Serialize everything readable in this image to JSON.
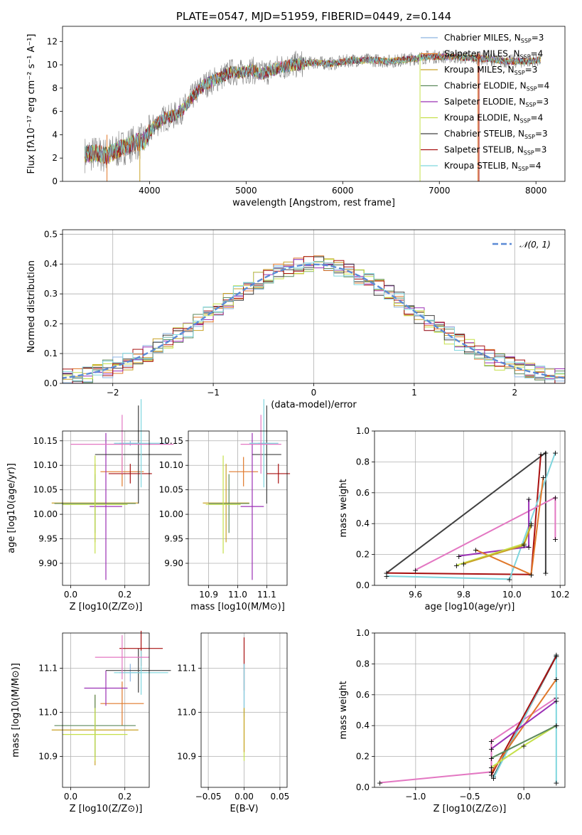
{
  "chart_data": [
    {
      "id": "spectrum",
      "type": "line",
      "title": "PLATE=0547, MJD=51959, FIBERID=0449, z=0.144",
      "xlabel": "wavelength [Angstrom, rest frame]",
      "ylabel": "Flux [fλ10⁻¹⁷ erg cm⁻² s⁻¹ A⁻¹]",
      "xlim": [
        3100,
        8300
      ],
      "ylim": [
        0,
        13.3
      ],
      "xticks": [
        4000,
        5000,
        6000,
        7000,
        8000
      ],
      "yticks": [
        0,
        2,
        4,
        6,
        8,
        10,
        12
      ],
      "observed_color": "#7f7f7f",
      "continuum": [
        [
          3330,
          2.3
        ],
        [
          3450,
          2.4
        ],
        [
          3550,
          2.2
        ],
        [
          3650,
          2.6
        ],
        [
          3750,
          3.0
        ],
        [
          3850,
          3.3
        ],
        [
          3950,
          3.5
        ],
        [
          4050,
          4.8
        ],
        [
          4150,
          5.4
        ],
        [
          4250,
          5.6
        ],
        [
          4350,
          6.2
        ],
        [
          4450,
          7.3
        ],
        [
          4550,
          8.2
        ],
        [
          4650,
          8.6
        ],
        [
          4750,
          9.0
        ],
        [
          4850,
          9.4
        ],
        [
          4950,
          9.3
        ],
        [
          5050,
          9.6
        ],
        [
          5150,
          9.2
        ],
        [
          5250,
          9.5
        ],
        [
          5350,
          9.8
        ],
        [
          5500,
          10.0
        ],
        [
          5700,
          10.2
        ],
        [
          5900,
          10.1
        ],
        [
          6100,
          10.4
        ],
        [
          6300,
          10.4
        ],
        [
          6500,
          10.3
        ],
        [
          6700,
          10.5
        ],
        [
          6900,
          10.7
        ],
        [
          7100,
          10.7
        ],
        [
          7300,
          10.6
        ],
        [
          7500,
          10.5
        ],
        [
          7700,
          10.3
        ],
        [
          7900,
          10.3
        ],
        [
          8050,
          10.4
        ]
      ],
      "legend": [
        {
          "name": "Chabrier MILES, N_SSP=3",
          "color": "#8cb3e0"
        },
        {
          "name": "Salpeter MILES, N_SSP=4",
          "color": "#e0782a"
        },
        {
          "name": "Kroupa MILES, N_SSP=3",
          "color": "#c9a227"
        },
        {
          "name": "Chabrier ELODIE, N_SSP=4",
          "color": "#5e8a5e"
        },
        {
          "name": "Salpeter ELODIE, N_SSP=3",
          "color": "#9b30b5"
        },
        {
          "name": "Kroupa ELODIE, N_SSP=4",
          "color": "#c5e04a"
        },
        {
          "name": "Chabrier STELIB, N_SSP=3",
          "color": "#404040"
        },
        {
          "name": "Salpeter STELIB, N_SSP=3",
          "color": "#a81010"
        },
        {
          "name": "Kroupa STELIB, N_SSP=4",
          "color": "#7fd6de"
        }
      ],
      "legend_placement": "right"
    },
    {
      "id": "residuals",
      "type": "line",
      "xlabel": "(data-model)/error",
      "ylabel": "Normed distribution",
      "xlim": [
        -2.5,
        2.5
      ],
      "ylim": [
        0,
        0.515
      ],
      "xticks": [
        -2,
        -1,
        0,
        1,
        2
      ],
      "yticks": [
        0.0,
        0.1,
        0.2,
        0.3,
        0.4,
        0.5
      ],
      "grid": true,
      "gaussian_label": "𝒩(0, 1)",
      "gaussian_color": "#5b8ad6",
      "legend_placement": "top-right"
    },
    {
      "id": "age_vs_Z",
      "type": "scatter",
      "xlabel": "Z [log10(Z/Z⊙)]",
      "ylabel": "age  [log10(age/yr)]",
      "xlim": [
        -0.03,
        0.29
      ],
      "ylim": [
        9.855,
        10.17
      ],
      "xticks": [
        0.0,
        0.2
      ],
      "yticks": [
        9.9,
        9.95,
        10.0,
        10.05,
        10.1,
        10.15
      ],
      "grid": true,
      "points": [
        {
          "color": "#8cb3e0",
          "x": 0.22,
          "xe": 0.04,
          "y": 10.145,
          "ye": 0.005
        },
        {
          "color": "#e0782a",
          "x": 0.19,
          "xe": 0.08,
          "y": 10.087,
          "ye": 0.03
        },
        {
          "color": "#c9a227",
          "x": 0.09,
          "xe": 0.16,
          "y": 10.023,
          "ye": 0.08
        },
        {
          "color": "#5e8a5e",
          "x": 0.09,
          "xe": 0.15,
          "y": 10.022,
          "ye": 0.06
        },
        {
          "color": "#9b30b5",
          "x": 0.13,
          "xe": 0.06,
          "y": 10.016,
          "ye": 0.15
        },
        {
          "color": "#c5e04a",
          "x": 0.09,
          "xe": 0.12,
          "y": 10.02,
          "ye": 0.1
        },
        {
          "color": "#404040",
          "x": 0.25,
          "xe": 0.16,
          "y": 10.122,
          "ye": 0.1
        },
        {
          "color": "#a81010",
          "x": 0.22,
          "xe": 0.08,
          "y": 10.083,
          "ye": 0.02
        },
        {
          "color": "#7fd6de",
          "x": 0.26,
          "xe": 0.1,
          "y": 10.145,
          "ye": 0.09
        },
        {
          "color": "#e377c2",
          "x": 0.19,
          "xe": 0.19,
          "y": 10.143,
          "ye": 0.06
        }
      ]
    },
    {
      "id": "age_vs_mass",
      "type": "scatter",
      "xlabel": "mass [log10(M/M⊙)]",
      "xlim": [
        10.83,
        11.17
      ],
      "ylim": [
        9.855,
        10.17
      ],
      "xticks": [
        10.9,
        11.0,
        11.1
      ],
      "yticks": [
        9.9,
        9.95,
        10.0,
        10.05,
        10.1,
        10.15
      ],
      "grid": true,
      "points": [
        {
          "color": "#8cb3e0",
          "x": 11.09,
          "xe": 0.02,
          "y": 10.145,
          "ye": 0.005
        },
        {
          "color": "#e0782a",
          "x": 11.02,
          "xe": 0.05,
          "y": 10.087,
          "ye": 0.03
        },
        {
          "color": "#c9a227",
          "x": 10.96,
          "xe": 0.08,
          "y": 10.023,
          "ye": 0.08
        },
        {
          "color": "#5e8a5e",
          "x": 10.97,
          "xe": 0.07,
          "y": 10.022,
          "ye": 0.06
        },
        {
          "color": "#9b30b5",
          "x": 11.05,
          "xe": 0.04,
          "y": 10.016,
          "ye": 0.15
        },
        {
          "color": "#c5e04a",
          "x": 10.95,
          "xe": 0.06,
          "y": 10.02,
          "ye": 0.1
        },
        {
          "color": "#404040",
          "x": 11.1,
          "xe": 0.05,
          "y": 10.122,
          "ye": 0.1
        },
        {
          "color": "#a81010",
          "x": 11.14,
          "xe": 0.04,
          "y": 10.083,
          "ye": 0.02
        },
        {
          "color": "#7fd6de",
          "x": 11.09,
          "xe": 0.05,
          "y": 10.145,
          "ye": 0.09
        },
        {
          "color": "#e377c2",
          "x": 11.08,
          "xe": 0.07,
          "y": 10.143,
          "ye": 0.06
        }
      ]
    },
    {
      "id": "weight_vs_age",
      "type": "line",
      "xlabel": "age  [log10(age/yr)]",
      "ylabel": "mass weight",
      "xlim": [
        9.43,
        10.22
      ],
      "ylim": [
        0,
        1.0
      ],
      "xticks": [
        9.6,
        9.8,
        10.0,
        10.2
      ],
      "yticks": [
        0.0,
        0.2,
        0.4,
        0.6,
        0.8,
        1.0
      ],
      "grid": true,
      "series": [
        {
          "color": "#404040",
          "points": [
            [
              9.48,
              0.08
            ],
            [
              10.14,
              0.86
            ],
            [
              10.14,
              0.08
            ]
          ]
        },
        {
          "color": "#a81010",
          "points": [
            [
              9.48,
              0.08
            ],
            [
              10.08,
              0.07
            ],
            [
              10.12,
              0.85
            ]
          ]
        },
        {
          "color": "#7fd6de",
          "points": [
            [
              9.48,
              0.06
            ],
            [
              9.99,
              0.04
            ],
            [
              10.18,
              0.86
            ]
          ]
        },
        {
          "color": "#e377c2",
          "points": [
            [
              9.6,
              0.1
            ],
            [
              10.18,
              0.57
            ],
            [
              10.18,
              0.3
            ]
          ]
        },
        {
          "color": "#9b30b5",
          "points": [
            [
              9.78,
              0.19
            ],
            [
              10.07,
              0.25
            ],
            [
              10.07,
              0.56
            ]
          ]
        },
        {
          "color": "#e0782a",
          "points": [
            [
              9.85,
              0.23
            ],
            [
              10.08,
              0.07
            ],
            [
              10.13,
              0.7
            ]
          ]
        },
        {
          "color": "#c5e04a",
          "points": [
            [
              9.77,
              0.13
            ],
            [
              10.05,
              0.27
            ],
            [
              10.08,
              0.4
            ]
          ]
        },
        {
          "color": "#c9a227",
          "points": [
            [
              9.8,
              0.14
            ],
            [
              10.05,
              0.26
            ],
            [
              10.08,
              0.39
            ]
          ]
        }
      ]
    },
    {
      "id": "mass_vs_Z",
      "type": "scatter",
      "xlabel": "Z [log10(Z/Z⊙)]",
      "ylabel": "mass [log10(M/M⊙)]",
      "xlim": [
        -0.03,
        0.29
      ],
      "ylim": [
        10.83,
        11.18
      ],
      "xticks": [
        0.0,
        0.2
      ],
      "yticks": [
        10.9,
        11.0,
        11.1
      ],
      "grid": true,
      "points": [
        {
          "color": "#8cb3e0",
          "x": 0.22,
          "xe": 0.04,
          "y": 11.09,
          "ye": 0.02
        },
        {
          "color": "#e0782a",
          "x": 0.19,
          "xe": 0.08,
          "y": 11.02,
          "ye": 0.05
        },
        {
          "color": "#c9a227",
          "x": 0.09,
          "xe": 0.16,
          "y": 10.96,
          "ye": 0.08
        },
        {
          "color": "#5e8a5e",
          "x": 0.09,
          "xe": 0.15,
          "y": 10.97,
          "ye": 0.07
        },
        {
          "color": "#9b30b5",
          "x": 0.13,
          "xe": 0.08,
          "y": 11.055,
          "ye": 0.04
        },
        {
          "color": "#c5e04a",
          "x": 0.09,
          "xe": 0.12,
          "y": 10.95,
          "ye": 0.06
        },
        {
          "color": "#404040",
          "x": 0.25,
          "xe": 0.12,
          "y": 11.095,
          "ye": 0.05
        },
        {
          "color": "#a81010",
          "x": 0.26,
          "xe": 0.08,
          "y": 11.145,
          "ye": 0.04
        },
        {
          "color": "#7fd6de",
          "x": 0.26,
          "xe": 0.1,
          "y": 11.09,
          "ye": 0.05
        },
        {
          "color": "#e377c2",
          "x": 0.19,
          "xe": 0.1,
          "y": 11.125,
          "ye": 0.05
        }
      ]
    },
    {
      "id": "mass_vs_ebv",
      "type": "scatter",
      "xlabel": "E(B-V)",
      "xlim": [
        -0.06,
        0.06
      ],
      "ylim": [
        10.83,
        11.18
      ],
      "xticks": [
        -0.05,
        0.0,
        0.05
      ],
      "xtick_labels": [
        "−0.05",
        "0.00",
        "0.05"
      ],
      "yticks": [
        10.9,
        11.0,
        11.1
      ],
      "grid": true,
      "points": [
        {
          "color": "#a81010",
          "x": 0.0,
          "xe": 0.0,
          "y": 11.11,
          "ye": 0.06
        },
        {
          "color": "#9b30b5",
          "x": 0.0,
          "xe": 0.0,
          "y": 11.06,
          "ye": 0.05
        },
        {
          "color": "#7fd6de",
          "x": 0.0,
          "xe": 0.0,
          "y": 11.05,
          "ye": 0.06
        },
        {
          "color": "#c5e04a",
          "x": 0.0,
          "xe": 0.0,
          "y": 10.95,
          "ye": 0.06
        },
        {
          "color": "#c9a227",
          "x": 0.0,
          "xe": 0.0,
          "y": 10.96,
          "ye": 0.05
        }
      ]
    },
    {
      "id": "weight_vs_Z",
      "type": "line",
      "xlabel": "Z [log10(Z/Z⊙)]",
      "ylabel": "mass weight",
      "xlim": [
        -1.38,
        0.38
      ],
      "ylim": [
        0,
        1.0
      ],
      "xticks": [
        -1.0,
        -0.5,
        0.0
      ],
      "xtick_labels": [
        "−1.0",
        "−0.5",
        "0.0"
      ],
      "yticks": [
        0.0,
        0.2,
        0.4,
        0.6,
        0.8,
        1.0
      ],
      "grid": true,
      "series": [
        {
          "color": "#e377c2",
          "points": [
            [
              -1.33,
              0.03
            ],
            [
              -0.3,
              0.1
            ],
            [
              -0.3,
              0.3
            ],
            [
              0.3,
              0.58
            ]
          ]
        },
        {
          "color": "#404040",
          "points": [
            [
              -0.28,
              0.07
            ],
            [
              0.3,
              0.85
            ]
          ]
        },
        {
          "color": "#7fd6de",
          "points": [
            [
              -0.28,
              0.06
            ],
            [
              0.3,
              0.86
            ],
            [
              0.3,
              0.03
            ]
          ]
        },
        {
          "color": "#a81010",
          "points": [
            [
              -0.3,
              0.08
            ],
            [
              0.3,
              0.85
            ]
          ]
        },
        {
          "color": "#e0782a",
          "points": [
            [
              -0.3,
              0.1
            ],
            [
              0.3,
              0.7
            ]
          ]
        },
        {
          "color": "#9b30b5",
          "points": [
            [
              -0.3,
              0.25
            ],
            [
              0.3,
              0.56
            ]
          ]
        },
        {
          "color": "#c5e04a",
          "points": [
            [
              -0.3,
              0.13
            ],
            [
              0.0,
              0.27
            ],
            [
              0.3,
              0.4
            ]
          ]
        },
        {
          "color": "#5e8a5e",
          "points": [
            [
              -0.3,
              0.19
            ],
            [
              0.3,
              0.4
            ]
          ]
        }
      ]
    }
  ]
}
